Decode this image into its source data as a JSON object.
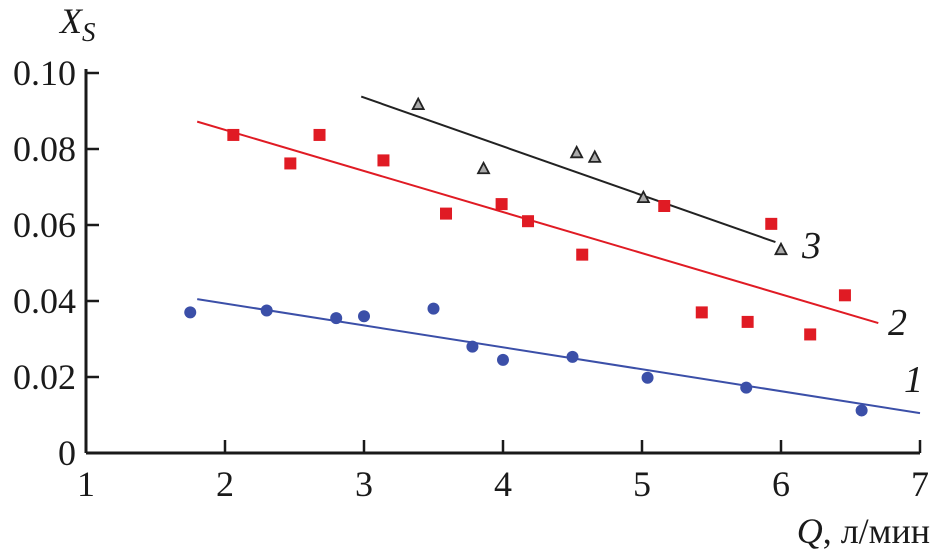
{
  "chart_data": {
    "type": "scatter",
    "title": "",
    "xlabel_var": "Q",
    "xlabel_unit": ", л/мин",
    "ylabel_main": "X",
    "ylabel_sub": "S",
    "xlim": [
      1,
      7
    ],
    "ylim": [
      0,
      0.1
    ],
    "x_ticks": [
      1,
      2,
      3,
      4,
      5,
      6,
      7
    ],
    "y_ticks": [
      0,
      0.02,
      0.04,
      0.06,
      0.08,
      0.1
    ],
    "x_tick_labels": [
      "1",
      "2",
      "3",
      "4",
      "5",
      "6",
      "7"
    ],
    "y_tick_labels": [
      "0",
      "0.02",
      "0.04",
      "0.06",
      "0.08",
      "0.10"
    ],
    "grid": false,
    "series": [
      {
        "name": "1",
        "color": "#3b4fa8",
        "marker": "circle",
        "points": [
          [
            1.75,
            0.037
          ],
          [
            2.3,
            0.0375
          ],
          [
            2.8,
            0.0355
          ],
          [
            3.0,
            0.036
          ],
          [
            3.5,
            0.038
          ],
          [
            3.78,
            0.028
          ],
          [
            4.0,
            0.0245
          ],
          [
            4.5,
            0.0253
          ],
          [
            5.04,
            0.0198
          ],
          [
            5.75,
            0.0172
          ],
          [
            6.58,
            0.0112
          ]
        ],
        "fit": [
          [
            1.8,
            0.0405
          ],
          [
            7.0,
            0.0105
          ]
        ]
      },
      {
        "name": "2",
        "color": "#e01b24",
        "marker": "square",
        "points": [
          [
            2.06,
            0.0837
          ],
          [
            2.47,
            0.0762
          ],
          [
            2.68,
            0.0837
          ],
          [
            3.14,
            0.077
          ],
          [
            3.59,
            0.063
          ],
          [
            3.99,
            0.0655
          ],
          [
            4.18,
            0.061
          ],
          [
            4.57,
            0.0522
          ],
          [
            5.16,
            0.065
          ],
          [
            5.43,
            0.037
          ],
          [
            5.76,
            0.0345
          ],
          [
            5.93,
            0.0603
          ],
          [
            6.21,
            0.0312
          ],
          [
            6.46,
            0.0415
          ]
        ],
        "fit": [
          [
            1.8,
            0.0872
          ],
          [
            6.7,
            0.0342
          ]
        ]
      },
      {
        "name": "3",
        "color": "#222222",
        "marker": "triangle",
        "points": [
          [
            3.39,
            0.0917
          ],
          [
            3.86,
            0.0748
          ],
          [
            4.53,
            0.079
          ],
          [
            4.66,
            0.0778
          ],
          [
            5.01,
            0.0672
          ],
          [
            6.0,
            0.0535
          ]
        ],
        "fit": [
          [
            2.98,
            0.0938
          ],
          [
            5.96,
            0.0555
          ]
        ]
      }
    ]
  }
}
